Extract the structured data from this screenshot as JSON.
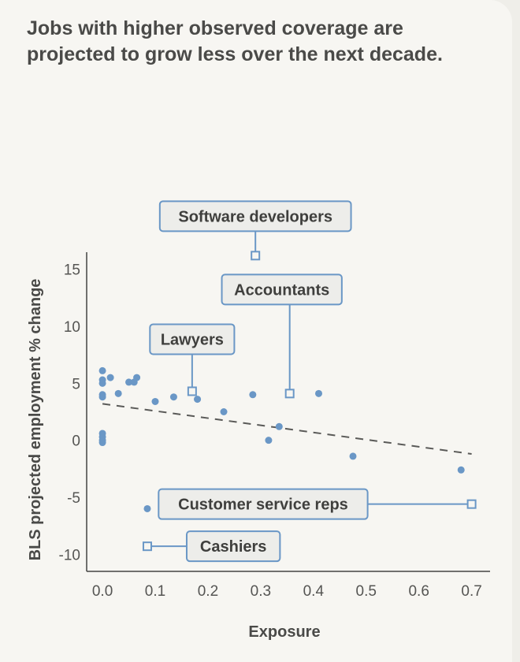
{
  "title": {
    "line1": "Jobs with higher observed coverage are",
    "line2": "projected to grow less over the next decade."
  },
  "colors": {
    "point": "#6a97c6",
    "callout_stroke": "#6a97c6",
    "callout_fill": "#ededea",
    "trend": "#5a5a58",
    "axis": "#444442"
  },
  "chart_data": {
    "type": "scatter",
    "title": "Jobs with higher observed coverage are projected to grow less over the next decade.",
    "xlabel": "Exposure",
    "ylabel": "BLS projected employment % change",
    "xlim": [
      -0.03,
      0.72
    ],
    "ylim": [
      -11.5,
      16.5
    ],
    "xticks": [
      "0.0",
      "0.1",
      "0.2",
      "0.3",
      "0.4",
      "0.5",
      "0.6",
      "0.7"
    ],
    "xtick_values": [
      0.0,
      0.1,
      0.2,
      0.3,
      0.4,
      0.5,
      0.6,
      0.7
    ],
    "yticks": [
      "15",
      "10",
      "5",
      "0",
      "-5",
      "-10"
    ],
    "ytick_values": [
      15,
      10,
      5,
      0,
      -5,
      -10
    ],
    "points": [
      {
        "x": 0.0,
        "y": 6.1
      },
      {
        "x": 0.0,
        "y": 5.3
      },
      {
        "x": 0.0,
        "y": 5.0
      },
      {
        "x": 0.0,
        "y": 4.0
      },
      {
        "x": 0.0,
        "y": 3.8
      },
      {
        "x": 0.015,
        "y": 5.5
      },
      {
        "x": 0.03,
        "y": 4.1
      },
      {
        "x": 0.05,
        "y": 5.1
      },
      {
        "x": 0.06,
        "y": 5.1
      },
      {
        "x": 0.065,
        "y": 5.5
      },
      {
        "x": 0.0,
        "y": 0.6
      },
      {
        "x": 0.0,
        "y": 0.3
      },
      {
        "x": 0.0,
        "y": 0.0
      },
      {
        "x": 0.0,
        "y": -0.2
      },
      {
        "x": 0.1,
        "y": 3.4
      },
      {
        "x": 0.135,
        "y": 3.8
      },
      {
        "x": 0.18,
        "y": 3.6
      },
      {
        "x": 0.23,
        "y": 2.5
      },
      {
        "x": 0.285,
        "y": 4.0
      },
      {
        "x": 0.315,
        "y": 0.0
      },
      {
        "x": 0.335,
        "y": 1.2
      },
      {
        "x": 0.41,
        "y": 4.1
      },
      {
        "x": 0.475,
        "y": -1.4
      },
      {
        "x": 0.68,
        "y": -2.6
      },
      {
        "x": 0.085,
        "y": -6.0
      }
    ],
    "trendline": {
      "x": [
        0.0,
        0.7
      ],
      "y": [
        3.2,
        -1.2
      ],
      "style": "dashed"
    },
    "annotations": [
      {
        "label": "Software developers",
        "x": 0.29,
        "y": 16.2
      },
      {
        "label": "Accountants",
        "x": 0.355,
        "y": 4.1
      },
      {
        "label": "Lawyers",
        "x": 0.17,
        "y": 4.3
      },
      {
        "label": "Customer service reps",
        "x": 0.7,
        "y": -5.6
      },
      {
        "label": "Cashiers",
        "x": 0.085,
        "y": -9.3
      }
    ]
  }
}
